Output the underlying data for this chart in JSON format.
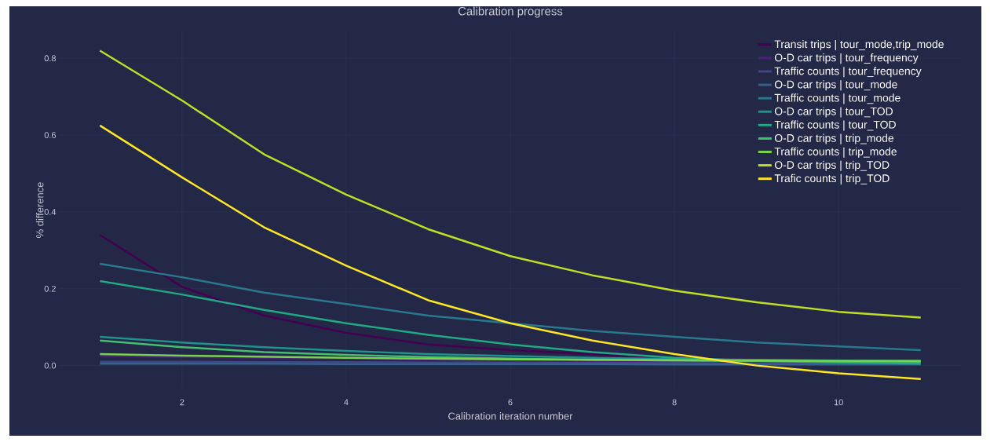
{
  "chart_data": {
    "type": "line",
    "title": "Calibration progress",
    "xlabel": "Calibration iteration number",
    "ylabel": "% difference",
    "x": [
      1,
      2,
      3,
      4,
      5,
      6,
      7,
      8,
      9,
      10,
      11
    ],
    "xlim": [
      0.5,
      11.5
    ],
    "xticks": [
      2,
      4,
      6,
      8,
      10
    ],
    "ylim": [
      -0.06,
      0.87
    ],
    "yticks": [
      {
        "value": 0,
        "label": "0.0"
      },
      0.2,
      0.4,
      0.6,
      0.8
    ],
    "grid": true,
    "legend": "top right",
    "marker": "none",
    "line_style": "solid",
    "series": [
      {
        "name": "Transit trips | tour_mode,trip_mode",
        "color": "#440154",
        "values": [
          0.34,
          0.205,
          0.13,
          0.085,
          0.055,
          0.04,
          0.03,
          0.02,
          0.015,
          0.01,
          0.008
        ]
      },
      {
        "name": "O-D car trips | tour_frequency",
        "color": "#482475",
        "values": [
          0.025,
          0.022,
          0.02,
          0.018,
          0.016,
          0.014,
          0.012,
          0.011,
          0.01,
          0.01,
          null
        ]
      },
      {
        "name": "Traffic counts | tour_frequency",
        "color": "#414487",
        "values": [
          0.01,
          0.01,
          0.009,
          0.009,
          0.008,
          0.008,
          0.007,
          0.007,
          0.006,
          0.006,
          0.006
        ]
      },
      {
        "name": "O-D car trips | tour_mode",
        "color": "#355f8d",
        "values": [
          0.005,
          0.005,
          0.005,
          0.004,
          0.004,
          0.004,
          0.004,
          0.003,
          0.003,
          0.003,
          0.003
        ]
      },
      {
        "name": "Traffic counts | tour_mode",
        "color": "#2a788e",
        "values": [
          0.265,
          0.23,
          0.19,
          0.16,
          0.13,
          0.11,
          0.09,
          0.075,
          0.06,
          0.05,
          0.04
        ]
      },
      {
        "name": "O-D car trips | tour_TOD",
        "color": "#21918c",
        "values": [
          0.075,
          0.06,
          0.048,
          0.038,
          0.03,
          0.025,
          0.02,
          0.017,
          0.015,
          0.013,
          0.012
        ]
      },
      {
        "name": "Traffic counts | tour_TOD",
        "color": "#22a884",
        "values": [
          0.22,
          0.185,
          0.145,
          0.11,
          0.08,
          0.055,
          0.035,
          0.02,
          0.012,
          0.008,
          0.005
        ]
      },
      {
        "name": "O-D car trips | trip_mode",
        "color": "#44bf70",
        "values": [
          0.065,
          0.048,
          0.035,
          0.028,
          0.022,
          0.018,
          0.015,
          0.013,
          0.012,
          0.011,
          0.01
        ]
      },
      {
        "name": "Traffic counts | trip_mode",
        "color": "#7ad151",
        "values": [
          0.03,
          0.026,
          0.023,
          0.02,
          0.018,
          0.016,
          0.015,
          0.014,
          0.013,
          0.012,
          0.012
        ]
      },
      {
        "name": "O-D car trips | trip_TOD",
        "color": "#bddf26",
        "values": [
          0.82,
          0.69,
          0.55,
          0.445,
          0.355,
          0.285,
          0.235,
          0.195,
          0.165,
          0.14,
          0.125
        ]
      },
      {
        "name": "Trafic counts | trip_TOD",
        "color": "#fde725",
        "values": [
          0.625,
          0.49,
          0.36,
          0.26,
          0.17,
          0.11,
          0.065,
          0.03,
          0.0,
          -0.02,
          -0.035
        ]
      }
    ]
  }
}
